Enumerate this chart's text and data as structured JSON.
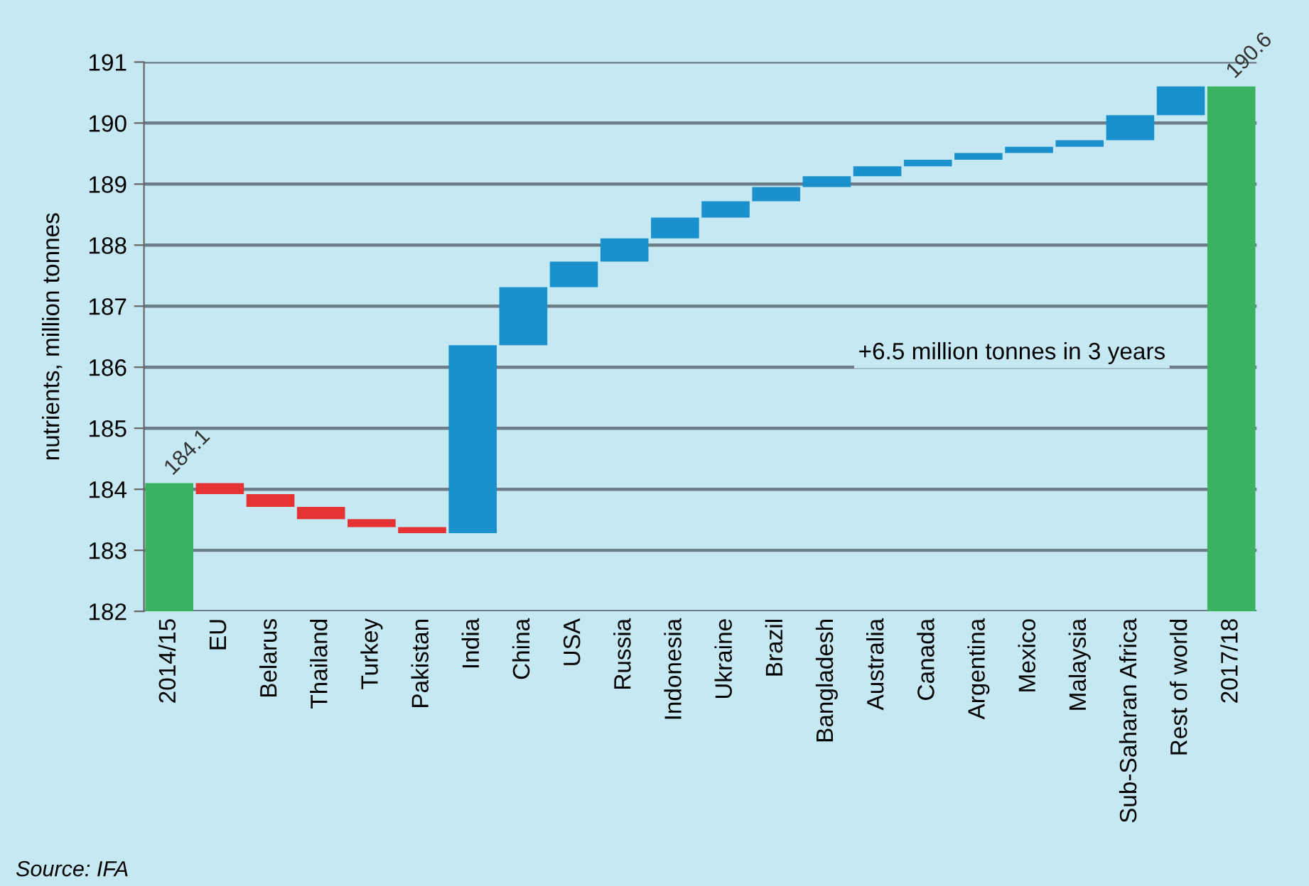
{
  "chart_data": {
    "type": "bar",
    "ylabel": "nutrients, million tonnes",
    "categories": [
      "2014/15",
      "EU",
      "Belarus",
      "Thailand",
      "Turkey",
      "Pakistan",
      "India",
      "China",
      "USA",
      "Russia",
      "Indonesia",
      "Ukraine",
      "Brazil",
      "Bangladesh",
      "Australia",
      "Canada",
      "Argentina",
      "Mexico",
      "Malaysia",
      "Sub-Saharan Africa",
      "Rest of world",
      "2017/18"
    ],
    "values": [
      184.1,
      -0.18,
      -0.21,
      -0.2,
      -0.13,
      -0.1,
      3.08,
      0.95,
      0.42,
      0.38,
      0.34,
      0.27,
      0.23,
      0.18,
      0.16,
      0.11,
      0.11,
      0.1,
      0.11,
      0.41,
      0.47,
      190.6
    ],
    "base": [
      null,
      184.1,
      183.92,
      183.71,
      183.51,
      183.38,
      183.28,
      186.36,
      187.31,
      187.73,
      188.11,
      188.45,
      188.72,
      188.95,
      189.13,
      189.29,
      189.4,
      189.51,
      189.61,
      189.72,
      190.13,
      null
    ],
    "colors": [
      "#3ab262",
      "#e53232",
      "#e53232",
      "#e53232",
      "#e53232",
      "#e53232",
      "#1a90cc",
      "#1a90cc",
      "#1a90cc",
      "#1a90cc",
      "#1a90cc",
      "#1a90cc",
      "#1a90cc",
      "#1a90cc",
      "#1a90cc",
      "#1a90cc",
      "#1a90cc",
      "#1a90cc",
      "#1a90cc",
      "#1a90cc",
      "#1a90cc",
      "#3ab262"
    ],
    "value_labels": [
      "184.1",
      null,
      null,
      null,
      null,
      null,
      null,
      null,
      null,
      null,
      null,
      null,
      null,
      null,
      null,
      null,
      null,
      null,
      null,
      null,
      null,
      "190.6"
    ],
    "ylim": [
      182,
      191
    ],
    "yticks": [
      182,
      183,
      184,
      185,
      186,
      187,
      188,
      189,
      190,
      191
    ],
    "grid": "y",
    "annotations": [
      "+6.5 million tonnes in 3 years",
      "Source: IFA"
    ]
  }
}
